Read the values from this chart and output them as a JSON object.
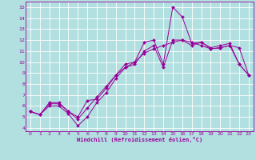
{
  "background_color": "#b2e0e0",
  "grid_color": "#ffffff",
  "line_color": "#990099",
  "xlim": [
    -0.5,
    23.5
  ],
  "ylim": [
    3.7,
    15.5
  ],
  "xticks": [
    0,
    1,
    2,
    3,
    4,
    5,
    6,
    7,
    8,
    9,
    10,
    11,
    12,
    13,
    14,
    15,
    16,
    17,
    18,
    19,
    20,
    21,
    22,
    23
  ],
  "yticks": [
    4,
    5,
    6,
    7,
    8,
    9,
    10,
    11,
    12,
    13,
    14,
    15
  ],
  "xlabel": "Windchill (Refroidissement éolien,°C)",
  "line1_x": [
    0,
    1,
    2,
    3,
    4,
    5,
    6,
    7,
    8,
    9,
    10,
    11,
    12,
    13,
    14,
    15,
    16,
    17,
    18,
    19,
    20,
    21,
    22,
    23
  ],
  "line1_y": [
    5.5,
    5.2,
    6.3,
    6.3,
    5.5,
    5.0,
    6.5,
    6.6,
    7.6,
    8.8,
    9.8,
    10.0,
    11.8,
    12.0,
    9.8,
    15.0,
    14.1,
    11.7,
    11.8,
    11.3,
    11.5,
    11.7,
    9.8,
    8.8
  ],
  "line2_x": [
    0,
    1,
    2,
    3,
    4,
    5,
    6,
    7,
    8,
    9,
    10,
    11,
    12,
    13,
    14,
    15,
    16,
    17,
    18,
    19,
    20,
    21,
    22,
    23
  ],
  "line2_y": [
    5.5,
    5.2,
    6.2,
    6.2,
    5.5,
    4.8,
    5.8,
    6.8,
    7.8,
    8.8,
    9.5,
    10.0,
    10.8,
    11.2,
    11.5,
    11.8,
    12.0,
    11.8,
    11.5,
    11.2,
    11.3,
    11.5,
    11.3,
    8.8
  ],
  "line3_x": [
    0,
    1,
    2,
    3,
    4,
    5,
    6,
    7,
    8,
    9,
    10,
    11,
    12,
    13,
    14,
    15,
    16,
    17,
    18,
    19,
    20,
    21,
    22,
    23
  ],
  "line3_y": [
    5.5,
    5.2,
    6.0,
    6.0,
    5.3,
    4.2,
    5.0,
    6.3,
    7.2,
    8.5,
    9.5,
    9.8,
    11.0,
    11.5,
    9.5,
    12.0,
    12.0,
    11.5,
    11.8,
    11.2,
    11.3,
    11.5,
    9.8,
    8.8
  ]
}
